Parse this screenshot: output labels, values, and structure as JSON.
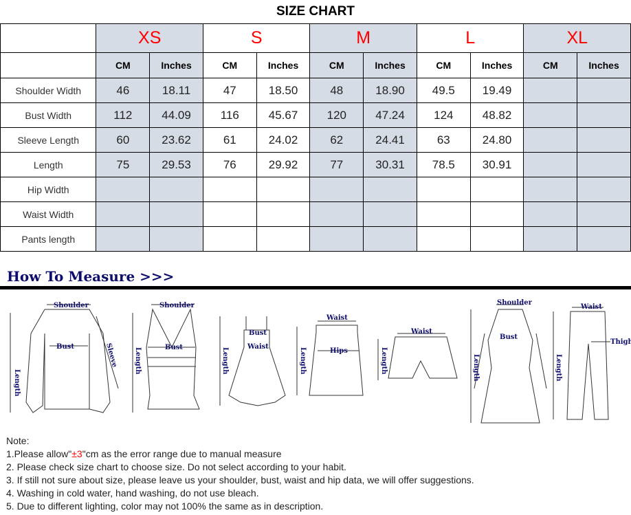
{
  "title": "SIZE CHART",
  "sizes": [
    "XS",
    "S",
    "M",
    "L",
    "XL"
  ],
  "units": [
    "CM",
    "Inches"
  ],
  "rows": [
    {
      "label": "Shoulder Width",
      "values": [
        "46",
        "18.11",
        "47",
        "18.50",
        "48",
        "18.90",
        "49.5",
        "19.49",
        "",
        ""
      ]
    },
    {
      "label": "Bust Width",
      "values": [
        "112",
        "44.09",
        "116",
        "45.67",
        "120",
        "47.24",
        "124",
        "48.82",
        "",
        ""
      ]
    },
    {
      "label": "Sleeve Length",
      "values": [
        "60",
        "23.62",
        "61",
        "24.02",
        "62",
        "24.41",
        "63",
        "24.80",
        "",
        ""
      ]
    },
    {
      "label": "Length",
      "values": [
        "75",
        "29.53",
        "76",
        "29.92",
        "77",
        "30.31",
        "78.5",
        "30.91",
        "",
        ""
      ]
    },
    {
      "label": "Hip Width",
      "values": [
        "",
        "",
        "",
        "",
        "",
        "",
        "",
        "",
        "",
        ""
      ]
    },
    {
      "label": "Waist Width",
      "values": [
        "",
        "",
        "",
        "",
        "",
        "",
        "",
        "",
        "",
        ""
      ]
    },
    {
      "label": "Pants length",
      "values": [
        "",
        "",
        "",
        "",
        "",
        "",
        "",
        "",
        "",
        ""
      ]
    }
  ],
  "highlight_color": "#d6dce5",
  "size_color": "#ff0000",
  "how_to_measure": "How To Measure >>>",
  "diagram_labels": {
    "shoulder": "Shoulder",
    "bust": "Bust",
    "sleeve": "Sleeve",
    "length": "Length",
    "waist": "Waist",
    "hips": "Hips",
    "thigh": "Thigh"
  },
  "notes": {
    "heading": "Note:",
    "n1_pre": "1.Please allow\"",
    "n1_red": "±3",
    "n1_post": "\"cm as the error range due to manual measure",
    "n2": "2. Please check size chart to choose size. Do not select according to your habit.",
    "n3": "3. If still not sure about size, please leave us your shoulder, bust, waist and hip data, we will offer suggestions.",
    "n4": "4. Washing in cold water, hand washing, do not use bleach.",
    "n5": "5. Due to different lighting, color may not 100% the same as in description."
  }
}
